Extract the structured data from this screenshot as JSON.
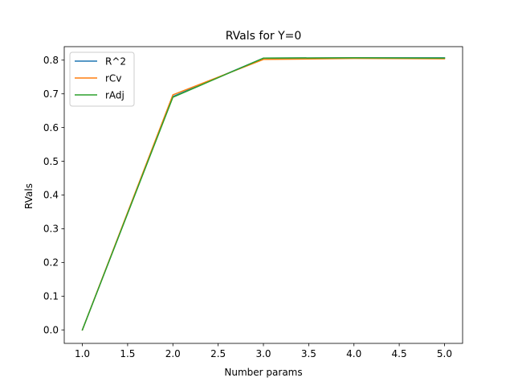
{
  "chart_data": {
    "type": "line",
    "title": "RVals for Y=0",
    "xlabel": "Number params",
    "ylabel": "RVals",
    "xlim": [
      0.8,
      5.2
    ],
    "ylim": [
      -0.04,
      0.84
    ],
    "xticks": [
      1.0,
      1.5,
      2.0,
      2.5,
      3.0,
      3.5,
      4.0,
      4.5,
      5.0
    ],
    "yticks": [
      0.0,
      0.1,
      0.2,
      0.3,
      0.4,
      0.5,
      0.6,
      0.7,
      0.8
    ],
    "x": [
      1,
      2,
      3,
      4,
      5
    ],
    "grid": false,
    "legend_position": "top-left",
    "series": [
      {
        "name": "R^2",
        "color": "#1f77b4",
        "values": [
          0.0,
          0.692,
          0.806,
          0.807,
          0.807
        ]
      },
      {
        "name": "rCv",
        "color": "#ff7f0e",
        "values": [
          0.0,
          0.697,
          0.802,
          0.805,
          0.804
        ]
      },
      {
        "name": "rAdj",
        "color": "#2ca02c",
        "values": [
          0.0,
          0.69,
          0.806,
          0.807,
          0.806
        ]
      }
    ]
  }
}
